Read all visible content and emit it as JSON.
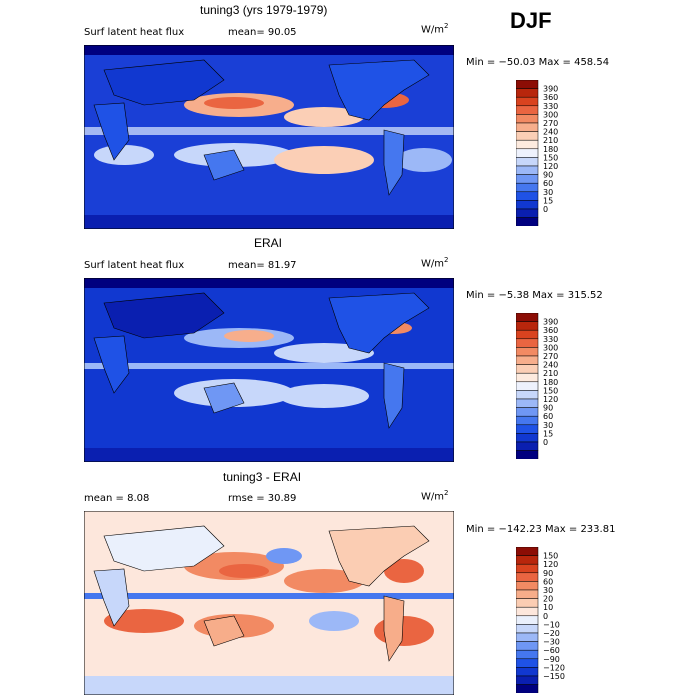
{
  "season": "DJF",
  "colors": {
    "flux": [
      "#00007f",
      "#0a1fb0",
      "#1138d0",
      "#1f52e6",
      "#4577ef",
      "#6f97f4",
      "#9cb8f7",
      "#c7d7fa",
      "#eef2fd",
      "#fdebdf",
      "#fbcfb6",
      "#f7ae8c",
      "#f28a63",
      "#ea6541",
      "#d9431f",
      "#b8260c",
      "#8c0d05"
    ],
    "diff": [
      "#00007f",
      "#0a1fb0",
      "#1138d0",
      "#1f52e6",
      "#4577ef",
      "#6f97f4",
      "#9cb8f7",
      "#c7d7fa",
      "#eaf0fc",
      "#fde7dc",
      "#fbcdb3",
      "#f7ad8a",
      "#f28a63",
      "#ea6541",
      "#d9431f",
      "#b8260c",
      "#8c0d05"
    ]
  },
  "panels": [
    {
      "title": "tuning3 (yrs 1979-1979)",
      "left_text": "Surf latent heat flux",
      "right_text": "mean=  90.05",
      "units": "W/m",
      "units_sup": "2",
      "minmax": "Min = −50.03 Max = 458.54"
    },
    {
      "title": "ERAI",
      "left_text": "Surf latent heat flux",
      "right_text": "mean=  81.97",
      "units": "W/m",
      "units_sup": "2",
      "minmax": "Min =  −5.38 Max = 315.52"
    },
    {
      "title": "tuning3 - ERAI",
      "left_text": "mean =   8.08",
      "right_text": "rmse =  30.89",
      "units": "W/m",
      "units_sup": "2",
      "minmax": "Min = −142.23 Max = 233.81"
    }
  ],
  "chart_data": [
    {
      "type": "heatmap",
      "title": "tuning3 (yrs 1979-1979)",
      "variable": "Surf latent heat flux",
      "units": "W/m2",
      "mean": 90.05,
      "min": -50.03,
      "max": 458.54,
      "colorbar_levels": [
        "390",
        "360",
        "330",
        "300",
        "270",
        "240",
        "210",
        "180",
        "150",
        "120",
        "90",
        "60",
        "30",
        "15",
        "0"
      ]
    },
    {
      "type": "heatmap",
      "title": "ERAI",
      "variable": "Surf latent heat flux",
      "units": "W/m2",
      "mean": 81.97,
      "min": -5.38,
      "max": 315.52,
      "colorbar_levels": [
        "390",
        "360",
        "330",
        "300",
        "270",
        "240",
        "210",
        "180",
        "150",
        "120",
        "90",
        "60",
        "30",
        "15",
        "0"
      ]
    },
    {
      "type": "heatmap",
      "title": "tuning3 - ERAI",
      "units": "W/m2",
      "mean": 8.08,
      "rmse": 30.89,
      "min": -142.23,
      "max": 233.81,
      "colorbar_levels": [
        "150",
        "120",
        "90",
        "60",
        "30",
        "20",
        "10",
        "0",
        "−10",
        "−20",
        "−30",
        "−60",
        "−90",
        "−120",
        "−150"
      ]
    }
  ]
}
